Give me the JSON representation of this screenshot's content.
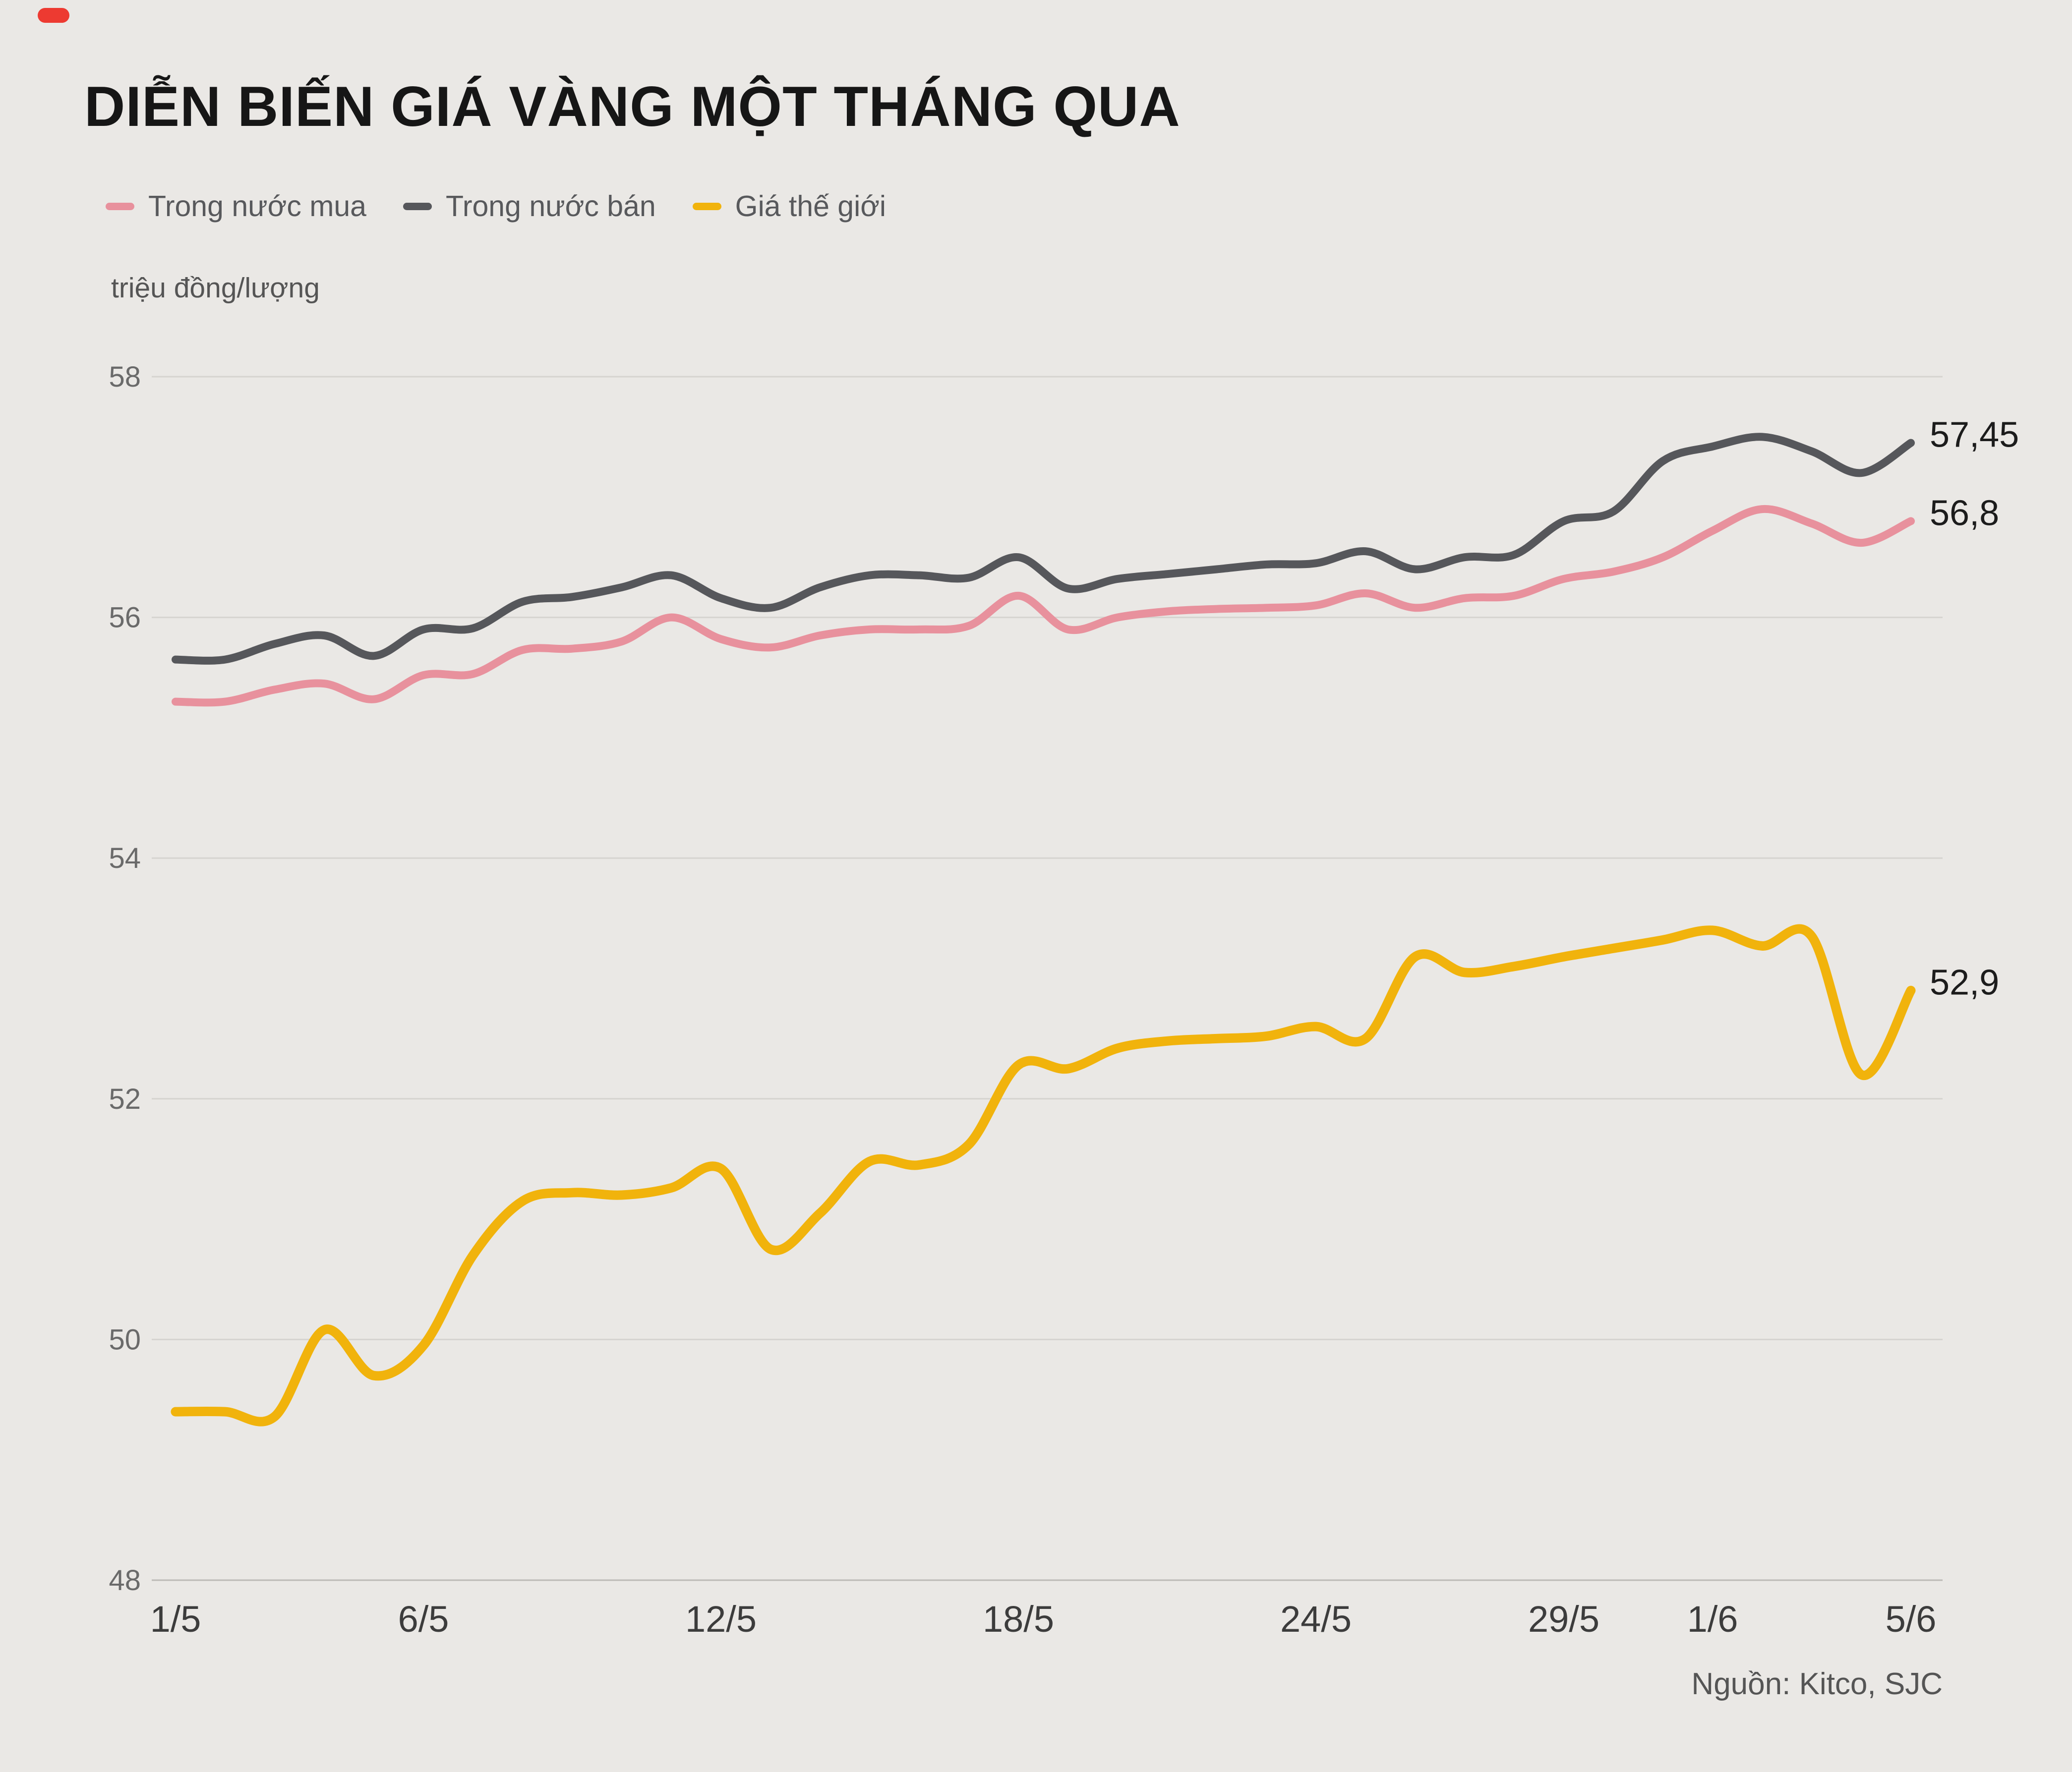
{
  "page": {
    "background_color": "#eae8e5",
    "brand_mark_color": "#ed3a31"
  },
  "header": {
    "title": "DIỄN BIẾN GIÁ VÀNG MỘT THÁNG QUA",
    "unit_label": "triệu đồng/lượng"
  },
  "legend": {
    "items": [
      {
        "label": "Trong nước mua",
        "color": "#e8919d"
      },
      {
        "label": "Trong nước bán",
        "color": "#56575b"
      },
      {
        "label": "Giá thế giới",
        "color": "#f1b30c"
      }
    ]
  },
  "footer": {
    "source": "Nguồn: Kitco, SJC"
  },
  "chart_data": {
    "type": "line",
    "title": "DIỄN BIẾN GIÁ VÀNG MỘT THÁNG QUA",
    "ylabel": "triệu đồng/lượng",
    "xlabel": "",
    "ylim": [
      48,
      58
    ],
    "yticks": [
      48,
      50,
      52,
      54,
      56,
      58
    ],
    "grid": "horizontal",
    "legend_position": "top",
    "x_range_note": "daily values from 1/5 (May 1) to 5/6 (June 5)",
    "x_days": [
      1,
      2,
      3,
      4,
      5,
      6,
      7,
      8,
      9,
      10,
      11,
      12,
      13,
      14,
      15,
      16,
      17,
      18,
      19,
      20,
      21,
      22,
      23,
      24,
      25,
      26,
      27,
      28,
      29,
      30,
      31,
      32,
      33,
      34,
      35,
      36
    ],
    "xticks": [
      {
        "day": 1,
        "label": "1/5"
      },
      {
        "day": 6,
        "label": "6/5"
      },
      {
        "day": 12,
        "label": "12/5"
      },
      {
        "day": 18,
        "label": "18/5"
      },
      {
        "day": 24,
        "label": "24/5"
      },
      {
        "day": 29,
        "label": "29/5"
      },
      {
        "day": 32,
        "label": "1/6"
      },
      {
        "day": 36,
        "label": "5/6"
      }
    ],
    "series": [
      {
        "name": "Trong nước mua",
        "color": "#e8919d",
        "end_label": "56,8",
        "end_value": 56.8,
        "values": [
          55.3,
          55.3,
          55.4,
          55.45,
          55.32,
          55.52,
          55.53,
          55.73,
          55.74,
          55.8,
          56.0,
          55.82,
          55.75,
          55.85,
          55.9,
          55.9,
          55.93,
          56.18,
          55.9,
          56.0,
          56.05,
          56.07,
          56.08,
          56.1,
          56.2,
          56.08,
          56.16,
          56.18,
          56.32,
          56.38,
          56.5,
          56.72,
          56.9,
          56.78,
          56.62,
          56.8
        ]
      },
      {
        "name": "Trong nước bán",
        "color": "#56575b",
        "end_label": "57,45",
        "end_value": 57.45,
        "values": [
          55.65,
          55.65,
          55.78,
          55.85,
          55.68,
          55.9,
          55.91,
          56.13,
          56.17,
          56.25,
          56.35,
          56.16,
          56.08,
          56.25,
          56.35,
          56.35,
          56.33,
          56.5,
          56.24,
          56.32,
          56.36,
          56.4,
          56.44,
          56.45,
          56.55,
          56.4,
          56.5,
          56.52,
          56.8,
          56.88,
          57.3,
          57.42,
          57.5,
          57.38,
          57.2,
          57.45
        ]
      },
      {
        "name": "Giá thế giới",
        "color": "#f1b30c",
        "end_label": "52,9",
        "end_value": 52.9,
        "values": [
          49.4,
          49.4,
          49.36,
          50.08,
          49.7,
          49.95,
          50.7,
          51.15,
          51.22,
          51.2,
          51.26,
          51.42,
          50.75,
          51.05,
          51.48,
          51.45,
          51.62,
          52.28,
          52.25,
          52.42,
          52.48,
          52.5,
          52.52,
          52.6,
          52.5,
          53.18,
          53.05,
          53.1,
          53.18,
          53.25,
          53.32,
          53.4,
          53.27,
          53.35,
          52.2,
          52.9
        ]
      }
    ]
  }
}
